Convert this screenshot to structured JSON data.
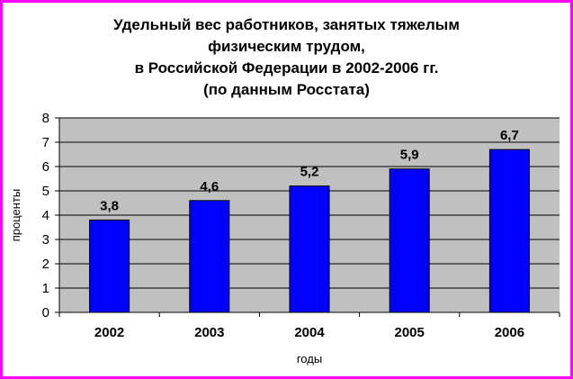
{
  "chart_data": {
    "type": "bar",
    "title_lines": [
      "Удельный вес работников, занятых тяжелым",
      "физическим трудом,",
      "в Российской Федерации в 2002-2006 гг.",
      "(по данным Росстата)"
    ],
    "categories": [
      "2002",
      "2003",
      "2004",
      "2005",
      "2006"
    ],
    "values": [
      3.8,
      4.6,
      5.2,
      5.9,
      6.7
    ],
    "data_labels": [
      "3,8",
      "4,6",
      "5,2",
      "5,9",
      "6,7"
    ],
    "xlabel": "годы",
    "ylabel": "проценты",
    "ylim": [
      0,
      8
    ],
    "yticks": [
      "0",
      "1",
      "2",
      "3",
      "4",
      "5",
      "6",
      "7",
      "8"
    ],
    "grid": true,
    "legend": "none",
    "colors": {
      "bar": "#0000ff",
      "plot_background": "#c0c0c0",
      "border": "#ff00ff",
      "gridline": "#000000"
    }
  }
}
